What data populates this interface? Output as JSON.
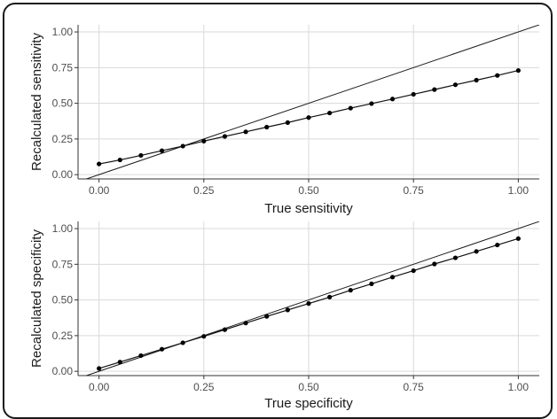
{
  "chart_data": [
    {
      "type": "line",
      "xlabel": "True sensitivity",
      "ylabel": "Recalculated sensitivity",
      "xlim": [
        -0.05,
        1.05
      ],
      "ylim": [
        -0.03,
        1.05
      ],
      "x_ticks": [
        "0.00",
        "0.25",
        "0.50",
        "0.75",
        "1.00"
      ],
      "y_ticks": [
        "0.00",
        "0.25",
        "0.50",
        "0.75",
        "1.00"
      ],
      "grid": true,
      "reference_line": {
        "slope": 1,
        "intercept": 0
      },
      "series": [
        {
          "x": [
            0.0,
            0.05,
            0.1,
            0.15,
            0.2,
            0.25,
            0.3,
            0.35,
            0.4,
            0.45,
            0.5,
            0.55,
            0.6,
            0.65,
            0.7,
            0.75,
            0.8,
            0.85,
            0.9,
            0.95,
            1.0
          ],
          "y": [
            0.075,
            0.103,
            0.135,
            0.168,
            0.2,
            0.235,
            0.268,
            0.3,
            0.333,
            0.365,
            0.4,
            0.432,
            0.466,
            0.498,
            0.53,
            0.563,
            0.596,
            0.63,
            0.662,
            0.695,
            0.73
          ]
        }
      ]
    },
    {
      "type": "line",
      "xlabel": "True specificity",
      "ylabel": "Recalculated specificity",
      "xlim": [
        -0.05,
        1.05
      ],
      "ylim": [
        -0.03,
        1.05
      ],
      "x_ticks": [
        "0.00",
        "0.25",
        "0.50",
        "0.75",
        "1.00"
      ],
      "y_ticks": [
        "0.00",
        "0.25",
        "0.50",
        "0.75",
        "1.00"
      ],
      "grid": true,
      "reference_line": {
        "slope": 1,
        "intercept": 0
      },
      "series": [
        {
          "x": [
            0.0,
            0.05,
            0.1,
            0.15,
            0.2,
            0.25,
            0.3,
            0.35,
            0.4,
            0.45,
            0.5,
            0.55,
            0.6,
            0.65,
            0.7,
            0.75,
            0.8,
            0.85,
            0.9,
            0.95,
            1.0
          ],
          "y": [
            0.02,
            0.065,
            0.11,
            0.155,
            0.2,
            0.245,
            0.292,
            0.338,
            0.385,
            0.43,
            0.475,
            0.52,
            0.568,
            0.613,
            0.66,
            0.705,
            0.752,
            0.795,
            0.84,
            0.885,
            0.93
          ]
        }
      ]
    }
  ]
}
